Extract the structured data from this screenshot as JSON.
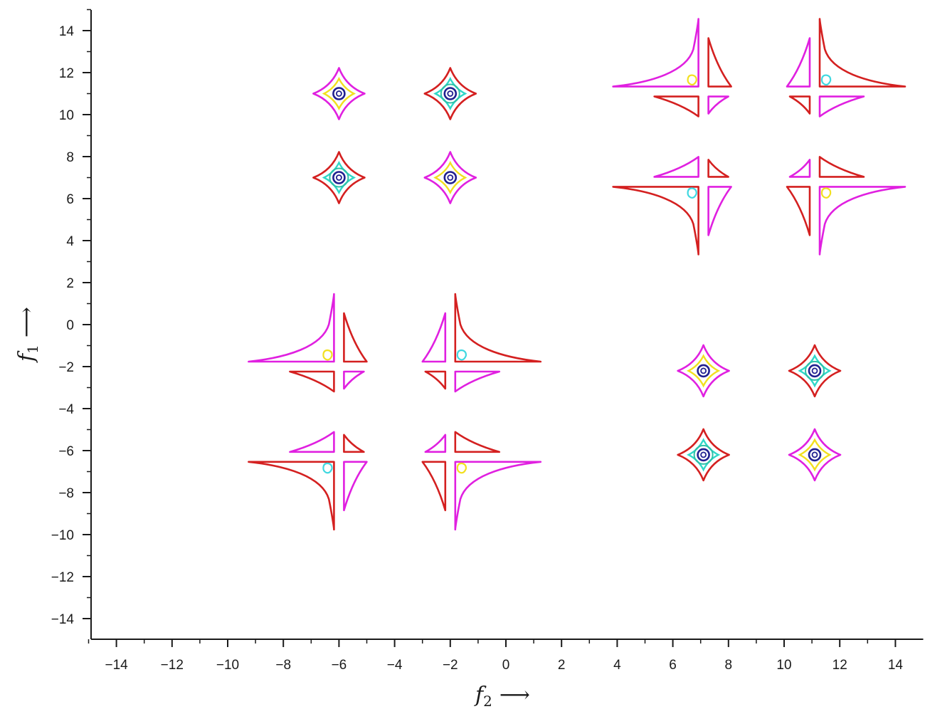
{
  "chart_data": {
    "type": "contour",
    "title": "",
    "xlabel": {
      "symbol": "f",
      "sub": "2",
      "arrow": "⟶"
    },
    "ylabel": {
      "symbol": "f",
      "sub": "1",
      "arrow": "⟶"
    },
    "xlim": [
      -15,
      15
    ],
    "ylim": [
      -15,
      15
    ],
    "xticks": [
      -14,
      -12,
      -10,
      -8,
      -6,
      -4,
      -2,
      0,
      2,
      4,
      6,
      8,
      10,
      12,
      14
    ],
    "yticks": [
      -14,
      -12,
      -10,
      -8,
      -6,
      -4,
      -2,
      0,
      2,
      4,
      6,
      8,
      10,
      12,
      14
    ],
    "grid": false,
    "colors": {
      "outer_a": "#e020e0",
      "outer_b": "#d42020",
      "inner_ring": "#f2e020",
      "mid_ring": "#30d8c8",
      "core": "#202090",
      "small_loop_yellow": "#f2e020",
      "small_loop_cyan": "#40d8e0"
    },
    "diamond_peaks": [
      {
        "x": -6,
        "y": 11,
        "outer": "outer_a",
        "fill": "yellow"
      },
      {
        "x": -2,
        "y": 11,
        "outer": "outer_b",
        "fill": "cyan"
      },
      {
        "x": -6,
        "y": 7,
        "outer": "outer_b",
        "fill": "cyan"
      },
      {
        "x": -2,
        "y": 7,
        "outer": "outer_a",
        "fill": "yellow"
      },
      {
        "x": 7.1,
        "y": -2.2,
        "outer": "outer_a",
        "fill": "yellow"
      },
      {
        "x": 11.1,
        "y": -2.2,
        "outer": "outer_b",
        "fill": "cyan"
      },
      {
        "x": 7.1,
        "y": -6.2,
        "outer": "outer_b",
        "fill": "cyan"
      },
      {
        "x": 11.1,
        "y": -6.2,
        "outer": "outer_a",
        "fill": "yellow"
      }
    ],
    "cross_patterns": [
      {
        "x": 7.1,
        "y": 11.1,
        "big_corner": "tl",
        "colors": {
          "tl": "outer_a",
          "tr": "outer_b",
          "bl": "outer_b",
          "br": "outer_a"
        },
        "loop": "small_loop_yellow"
      },
      {
        "x": 11.1,
        "y": 11.1,
        "big_corner": "tr",
        "colors": {
          "tl": "outer_a",
          "tr": "outer_b",
          "bl": "outer_b",
          "br": "outer_a"
        },
        "loop": "small_loop_cyan"
      },
      {
        "x": 7.1,
        "y": 6.8,
        "big_corner": "bl",
        "colors": {
          "tl": "outer_a",
          "tr": "outer_b",
          "bl": "outer_b",
          "br": "outer_a"
        },
        "loop": "small_loop_cyan"
      },
      {
        "x": 11.1,
        "y": 6.8,
        "big_corner": "br",
        "colors": {
          "tl": "outer_a",
          "tr": "outer_b",
          "bl": "outer_b",
          "br": "outer_a"
        },
        "loop": "small_loop_yellow"
      },
      {
        "x": -6,
        "y": -2,
        "big_corner": "tl",
        "colors": {
          "tl": "outer_a",
          "tr": "outer_b",
          "bl": "outer_b",
          "br": "outer_a"
        },
        "loop": "small_loop_yellow"
      },
      {
        "x": -2,
        "y": -2,
        "big_corner": "tr",
        "colors": {
          "tl": "outer_a",
          "tr": "outer_b",
          "bl": "outer_b",
          "br": "outer_a"
        },
        "loop": "small_loop_cyan"
      },
      {
        "x": -6,
        "y": -6.3,
        "big_corner": "bl",
        "colors": {
          "tl": "outer_a",
          "tr": "outer_b",
          "bl": "outer_b",
          "br": "outer_a"
        },
        "loop": "small_loop_cyan"
      },
      {
        "x": -2,
        "y": -6.3,
        "big_corner": "br",
        "colors": {
          "tl": "outer_a",
          "tr": "outer_b",
          "bl": "outer_b",
          "br": "outer_a"
        },
        "loop": "small_loop_yellow"
      }
    ]
  }
}
